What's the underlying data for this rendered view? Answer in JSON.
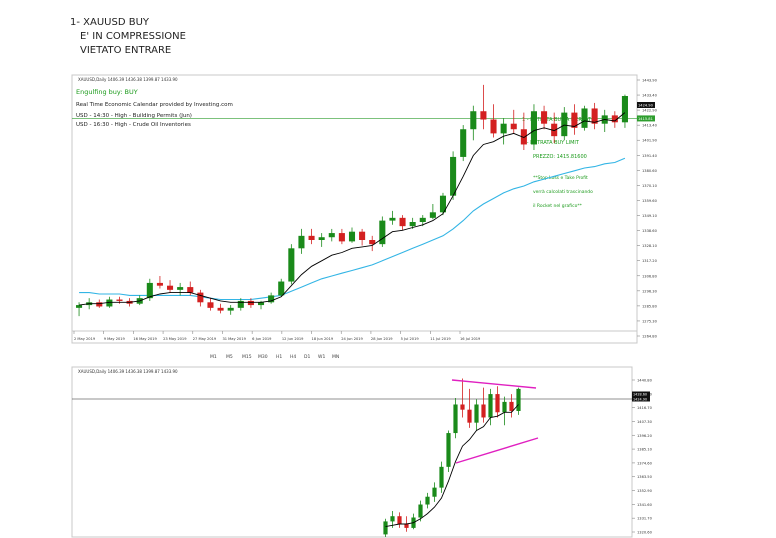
{
  "note": {
    "line1": "1- XAUUSD BUY",
    "line2": "E' IN COMPRESSIONE",
    "line3": "VIETATO ENTRARE"
  },
  "colors": {
    "bull": "#1a8a1a",
    "bear": "#d32020",
    "ema_fast": "#000000",
    "ema_slow": "#33b5e5",
    "wedge": "#e020c0",
    "annotation": "#1a9a1a"
  },
  "chart_data": [
    {
      "type": "candlestick",
      "header": "XAUUSD,Daily 1406.39 1436.38 1399.87 1433.90",
      "annotations": {
        "engulfing": "Engulfing buy: BUY",
        "calendar_title": "Real Time Economic Calendar provided by Investing.com",
        "event1": "USD - 14:30 - High - Building Permits (Jun)",
        "event2": "USD - 16:30 - High - Crude Oil Inventories",
        "entry_market": "1 - ENTRATA BUY A MERCATO",
        "entry_limit": "2 - ENTRATA BUY LIMIT",
        "price": "PREZZO: 1415.81600",
        "sl_tp_1": "**Stop Loss e Take Profit",
        "sl_tp_2": "verrà calcolati trascinando",
        "sl_tp_3": "il Rocket nel grafico**"
      },
      "y_ticks": [
        "1443.90",
        "1433.40",
        "1422.90",
        "1413.40",
        "1401.90",
        "1391.40",
        "1380.60",
        "1370.10",
        "1359.60",
        "1349.10",
        "1338.60",
        "1328.10",
        "1317.20",
        "1306.80",
        "1296.30",
        "1285.80",
        "1275.30",
        "1264.80"
      ],
      "price_tags": [
        "1424.90",
        "1415.81"
      ],
      "ylim": [
        1263.0,
        1445.0
      ],
      "x_ticks": [
        "2 May 2019",
        "9 May 2019",
        "16 May 2019",
        "23 May 2019",
        "27 May 2019",
        "31 May 2019",
        "6 Jun 2019",
        "12 Jun 2019",
        "18 Jun 2019",
        "24 Jun 2019",
        "28 Jun 2019",
        "5 Jul 2019",
        "11 Jul 2019",
        "16 Jul 2019"
      ],
      "entry_level": 1415.8,
      "candles": [
        [
          1279,
          1283,
          1273,
          1281
        ],
        [
          1281,
          1286,
          1278,
          1283
        ],
        [
          1283,
          1285,
          1279,
          1280
        ],
        [
          1280,
          1287,
          1279,
          1285
        ],
        [
          1285,
          1287,
          1282,
          1284
        ],
        [
          1284,
          1286,
          1280,
          1282
        ],
        [
          1282,
          1288,
          1281,
          1286
        ],
        [
          1286,
          1300,
          1284,
          1297
        ],
        [
          1297,
          1302,
          1293,
          1295
        ],
        [
          1295,
          1299,
          1290,
          1292
        ],
        [
          1292,
          1297,
          1288,
          1294
        ],
        [
          1294,
          1298,
          1288,
          1290
        ],
        [
          1290,
          1292,
          1280,
          1283
        ],
        [
          1283,
          1286,
          1277,
          1279
        ],
        [
          1279,
          1282,
          1275,
          1277
        ],
        [
          1277,
          1281,
          1274,
          1279
        ],
        [
          1279,
          1286,
          1277,
          1284
        ],
        [
          1284,
          1286,
          1279,
          1281
        ],
        [
          1281,
          1284,
          1278,
          1283
        ],
        [
          1283,
          1290,
          1282,
          1288
        ],
        [
          1288,
          1300,
          1287,
          1298
        ],
        [
          1298,
          1325,
          1296,
          1322
        ],
        [
          1322,
          1336,
          1318,
          1331
        ],
        [
          1331,
          1336,
          1325,
          1328
        ],
        [
          1328,
          1333,
          1323,
          1330
        ],
        [
          1330,
          1336,
          1327,
          1333
        ],
        [
          1333,
          1336,
          1325,
          1327
        ],
        [
          1327,
          1337,
          1326,
          1334
        ],
        [
          1334,
          1336,
          1324,
          1328
        ],
        [
          1328,
          1331,
          1320,
          1325
        ],
        [
          1325,
          1345,
          1323,
          1342
        ],
        [
          1342,
          1349,
          1339,
          1344
        ],
        [
          1344,
          1346,
          1335,
          1338
        ],
        [
          1338,
          1344,
          1336,
          1341
        ],
        [
          1341,
          1346,
          1338,
          1344
        ],
        [
          1344,
          1354,
          1343,
          1348
        ],
        [
          1348,
          1362,
          1346,
          1360
        ],
        [
          1360,
          1392,
          1357,
          1388
        ],
        [
          1388,
          1411,
          1385,
          1408
        ],
        [
          1408,
          1425,
          1400,
          1421
        ],
        [
          1421,
          1440,
          1408,
          1415
        ],
        [
          1415,
          1426,
          1402,
          1405
        ],
        [
          1405,
          1416,
          1397,
          1412
        ],
        [
          1412,
          1422,
          1405,
          1408
        ],
        [
          1408,
          1420,
          1393,
          1397
        ],
        [
          1397,
          1426,
          1393,
          1421
        ],
        [
          1421,
          1425,
          1408,
          1412
        ],
        [
          1412,
          1420,
          1398,
          1403
        ],
        [
          1403,
          1424,
          1400,
          1420
        ],
        [
          1420,
          1426,
          1404,
          1409
        ],
        [
          1409,
          1425,
          1407,
          1423
        ],
        [
          1423,
          1427,
          1408,
          1412
        ],
        [
          1412,
          1422,
          1406,
          1418
        ],
        [
          1418,
          1421,
          1409,
          1413
        ],
        [
          1413,
          1433,
          1409,
          1432
        ]
      ],
      "ema_fast": [
        1281,
        1282,
        1282,
        1283,
        1283,
        1283,
        1284,
        1287,
        1289,
        1290,
        1290,
        1290,
        1288,
        1286,
        1284,
        1283,
        1283,
        1283,
        1283,
        1284,
        1287,
        1295,
        1303,
        1309,
        1313,
        1317,
        1319,
        1322,
        1323,
        1324,
        1329,
        1334,
        1335,
        1337,
        1339,
        1342,
        1347,
        1360,
        1374,
        1389,
        1397,
        1399,
        1403,
        1405,
        1402,
        1407,
        1409,
        1407,
        1411,
        1410,
        1414,
        1413,
        1415,
        1414,
        1420
      ],
      "ema_slow": [
        1290,
        1290,
        1289,
        1289,
        1289,
        1288,
        1288,
        1288,
        1288,
        1288,
        1288,
        1288,
        1287,
        1286,
        1285,
        1285,
        1285,
        1285,
        1286,
        1287,
        1288,
        1291,
        1294,
        1297,
        1300,
        1302,
        1304,
        1306,
        1308,
        1310,
        1313,
        1316,
        1319,
        1322,
        1325,
        1328,
        1331,
        1336,
        1342,
        1349,
        1354,
        1358,
        1362,
        1365,
        1367,
        1370,
        1372,
        1374,
        1376,
        1378,
        1380,
        1381,
        1383,
        1384,
        1387
      ]
    },
    {
      "type": "candlestick",
      "header": "XAUUSD,Daily 1406.39 1436.38 1399.87 1433.90",
      "y_ticks": [
        "1440.80",
        "1426.40",
        "1416.70",
        "1407.30",
        "1396.20",
        "1385.10",
        "1374.60",
        "1363.50",
        "1352.90",
        "1341.60",
        "1331.70",
        "1320.60"
      ],
      "price_tags": [
        "1428.60",
        "1424.90"
      ],
      "ylim": [
        1318.0,
        1445.0
      ],
      "candles": [
        [
          1320,
          1332,
          1318,
          1330
        ],
        [
          1330,
          1338,
          1325,
          1334
        ],
        [
          1334,
          1337,
          1325,
          1328
        ],
        [
          1328,
          1334,
          1322,
          1325
        ],
        [
          1325,
          1336,
          1324,
          1333
        ],
        [
          1333,
          1346,
          1330,
          1343
        ],
        [
          1343,
          1352,
          1340,
          1349
        ],
        [
          1349,
          1360,
          1345,
          1356
        ],
        [
          1356,
          1376,
          1352,
          1372
        ],
        [
          1372,
          1400,
          1368,
          1398
        ],
        [
          1398,
          1425,
          1394,
          1420
        ],
        [
          1420,
          1440,
          1410,
          1416
        ],
        [
          1416,
          1432,
          1402,
          1406
        ],
        [
          1406,
          1424,
          1400,
          1420
        ],
        [
          1420,
          1433,
          1406,
          1410
        ],
        [
          1410,
          1432,
          1404,
          1428
        ],
        [
          1428,
          1434,
          1410,
          1414
        ],
        [
          1414,
          1426,
          1404,
          1422
        ],
        [
          1422,
          1428,
          1410,
          1415
        ],
        [
          1415,
          1433,
          1412,
          1432
        ]
      ],
      "ema_fast": [
        1326,
        1327,
        1328,
        1328,
        1329,
        1332,
        1336,
        1341,
        1348,
        1361,
        1376,
        1388,
        1393,
        1400,
        1403,
        1410,
        1411,
        1414,
        1414,
        1420
      ]
    }
  ],
  "toolbar": {
    "items": [
      "M1",
      "M5",
      "M15",
      "M30",
      "H1",
      "H4",
      "D1",
      "W1",
      "MN"
    ]
  }
}
